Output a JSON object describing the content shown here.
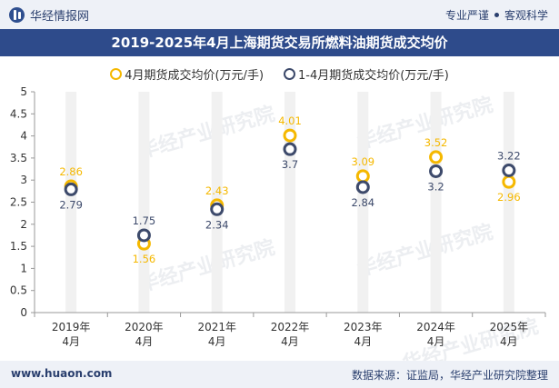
{
  "header": {
    "site_name": "华经情报网",
    "slogan_left": "专业严谨",
    "slogan_right": "客观科学"
  },
  "watermark_text": "华经产业研究院",
  "footer": {
    "url": "www.huaon.com",
    "source": "数据来源：证监局，华经产业研究院整理"
  },
  "chart_data": {
    "type": "line",
    "title": "2019-2025年4月上海期货交易所燃料油期货成交均价",
    "categories": [
      "2019年\n4月",
      "2020年\n4月",
      "2021年\n4月",
      "2022年\n4月",
      "2023年\n4月",
      "2024年\n4月",
      "2025年\n4月"
    ],
    "series": [
      {
        "name": "4月期货成交均价(万元/手)",
        "values": [
          2.86,
          1.56,
          2.43,
          4.01,
          3.09,
          3.52,
          2.96
        ],
        "color": "#f5b800"
      },
      {
        "name": "1-4月期货成交均价(万元/手)",
        "values": [
          2.79,
          1.75,
          2.34,
          3.7,
          2.84,
          3.2,
          3.22
        ],
        "color": "#3d4a6b"
      }
    ],
    "ylim": [
      0,
      5
    ],
    "yticks": [
      0,
      0.5,
      1,
      1.5,
      2,
      2.5,
      3,
      3.5,
      4,
      4.5,
      5
    ],
    "grid": false,
    "legend": "top-center",
    "label_color": "#f5b800",
    "label_color_2": "#3d4a6b"
  }
}
